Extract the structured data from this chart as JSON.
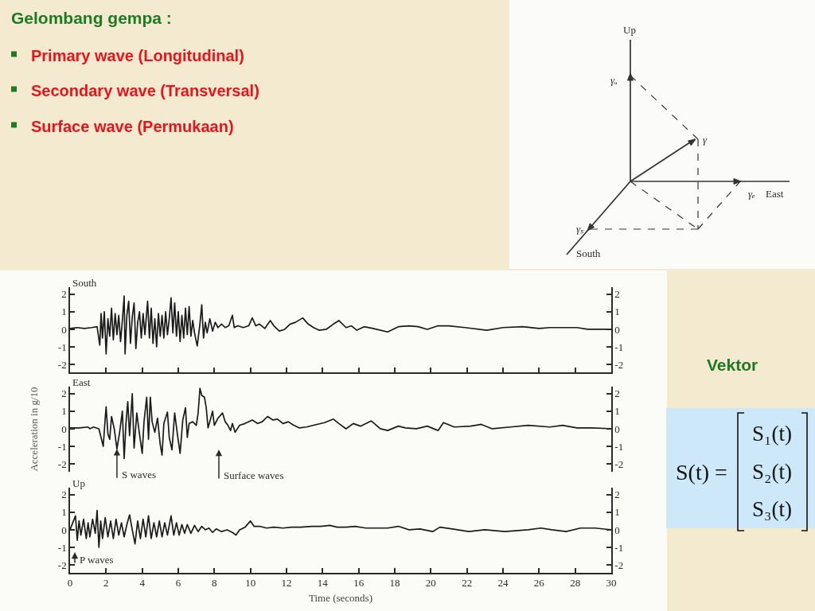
{
  "chart_data": [
    {
      "type": "line",
      "title": "South",
      "annotations": [
        "Gelombang gempa :",
        "Primary wave (Longitudinal)",
        "Secondary wave (Transversal)",
        "Surface wave (Permukaan)",
        "Up",
        "γᵤ",
        "γ",
        "γₑ",
        "East",
        "γₛ",
        "South",
        "Vektor",
        "S(t) =",
        "S₁(t)",
        "S₂(t)",
        "S₃(t)"
      ],
      "color": "#1a1a1a",
      "x": [
        0,
        0.4,
        0.8,
        1.2,
        1.5,
        1.65,
        1.72,
        1.8,
        1.9,
        2.0,
        2.1,
        2.2,
        2.3,
        2.4,
        2.5,
        2.6,
        2.7,
        2.8,
        2.9,
        3.0,
        3.05,
        3.15,
        3.25,
        3.35,
        3.45,
        3.55,
        3.65,
        3.75,
        3.85,
        3.95,
        4.05,
        4.15,
        4.3,
        4.4,
        4.5,
        4.6,
        4.7,
        4.8,
        4.9,
        5.0,
        5.1,
        5.2,
        5.3,
        5.4,
        5.5,
        5.6,
        5.7,
        5.8,
        5.9,
        6.0,
        6.1,
        6.2,
        6.3,
        6.4,
        6.5,
        6.6,
        6.7,
        6.8,
        6.9,
        7.05,
        7.2,
        7.3,
        7.4,
        7.5,
        7.6,
        7.75,
        7.9,
        8.05,
        8.2,
        8.4,
        8.6,
        8.8,
        9.0,
        9.1,
        9.3,
        9.6,
        9.9,
        10.1,
        10.3,
        10.5,
        10.8,
        11.1,
        11.3,
        11.6,
        11.9,
        12.2,
        12.5,
        12.9,
        13.2,
        13.5,
        13.8,
        14.2,
        14.6,
        14.9,
        15.3,
        15.6,
        15.9,
        16.3,
        16.8,
        17.6,
        18.2,
        18.8,
        19.3,
        19.8,
        20.4,
        21.0,
        21.9,
        23.1,
        24.0,
        25.1,
        26.0,
        26.6,
        27.5,
        28.1,
        28.7,
        29.6,
        30.0
      ],
      "values": [
        0.05,
        0.1,
        0.05,
        0.1,
        0.15,
        -0.9,
        0.9,
        -0.5,
        1.0,
        -1.4,
        0.6,
        -0.4,
        1.2,
        -0.6,
        0.9,
        -0.3,
        0.8,
        -0.7,
        0.5,
        1.9,
        -1.4,
        0.8,
        1.6,
        -0.8,
        0.7,
        1.5,
        -1.1,
        0.4,
        1.0,
        -0.5,
        0.9,
        -0.3,
        1.6,
        -0.5,
        1.2,
        -0.8,
        0.6,
        -1.0,
        0.9,
        -0.4,
        0.8,
        -0.5,
        1.0,
        -0.3,
        0.6,
        1.8,
        -0.2,
        1.5,
        -0.4,
        1.0,
        -0.7,
        0.8,
        -0.5,
        1.2,
        -0.3,
        1.3,
        -0.4,
        0.5,
        -0.2,
        -0.95,
        0.3,
        1.4,
        -0.5,
        0.4,
        -0.2,
        0.6,
        -0.1,
        0.4,
        0.1,
        0.3,
        0.1,
        0.2,
        0.8,
        0.1,
        0.2,
        0.1,
        0.2,
        0.65,
        0.2,
        0.3,
        0.05,
        0.5,
        0.2,
        -0.1,
        0.0,
        0.3,
        0.4,
        0.65,
        0.3,
        0.1,
        -0.05,
        0.0,
        0.3,
        0.5,
        0.1,
        0.2,
        -0.05,
        0.15,
        0.05,
        -0.15,
        0.15,
        0.2,
        0.15,
        0.0,
        0.2,
        0.2,
        0.1,
        -0.05,
        0.1,
        0.15,
        0.05,
        0.1,
        0.1,
        0.1,
        0.0,
        0.0,
        0.0
      ],
      "xlim": [
        0,
        30
      ],
      "xticks": [
        0,
        2,
        4,
        6,
        8,
        10,
        12,
        14,
        16,
        18,
        20,
        22,
        24,
        26,
        28,
        30
      ],
      "ylim": [
        -2.45,
        2.4
      ],
      "yticks": [
        -2,
        -1,
        0,
        1,
        2
      ],
      "y2lim": [
        -2.45,
        2.4
      ],
      "y2ticks": [
        -2,
        -1,
        0,
        1,
        2
      ],
      "tick_labels": "y"
    },
    {
      "type": "line",
      "title": "East",
      "ylabel": "Acceleration in g/10",
      "annotations": [
        {
          "text": "S waves",
          "x": 2.6,
          "y": -1.15
        },
        "Surface waves"
      ],
      "color": "#1a1a1a",
      "x": [
        0,
        0.5,
        1.0,
        1.1,
        1.3,
        1.6,
        1.84,
        1.95,
        2.0,
        2.1,
        2.2,
        2.3,
        2.45,
        2.6,
        2.75,
        2.9,
        3.0,
        3.1,
        3.2,
        3.3,
        3.45,
        3.55,
        3.7,
        3.85,
        4.0,
        4.1,
        4.25,
        4.35,
        4.45,
        4.55,
        4.7,
        4.85,
        5.0,
        5.1,
        5.2,
        5.4,
        5.5,
        5.65,
        5.8,
        5.95,
        6.1,
        6.25,
        6.4,
        6.5,
        6.6,
        6.8,
        7.0,
        7.1,
        7.2,
        7.3,
        7.45,
        7.55,
        7.65,
        7.8,
        7.9,
        8.0,
        8.2,
        8.45,
        8.6,
        8.75,
        8.9,
        9.0,
        9.15,
        9.4,
        9.7,
        10.1,
        10.4,
        10.65,
        10.95,
        11.25,
        11.5,
        11.8,
        12.1,
        12.4,
        12.7,
        13.1,
        13.5,
        14.1,
        14.6,
        14.9,
        15.3,
        15.7,
        16.1,
        16.7,
        17.2,
        17.6,
        18.2,
        18.6,
        19.2,
        19.8,
        20.4,
        20.7,
        21.3,
        22.2,
        22.8,
        23.4,
        24.4,
        25.4,
        26.6,
        27.3,
        28.1,
        29.0,
        30.0
      ],
      "values": [
        0.05,
        0.05,
        0.1,
        0.0,
        0.1,
        0.0,
        -1.0,
        0.6,
        1.25,
        -0.3,
        -0.6,
        0.7,
        0.0,
        -1.15,
        -0.2,
        1.0,
        -1.7,
        0.3,
        1.55,
        -0.4,
        2.0,
        -1.1,
        0.9,
        -0.3,
        -1.4,
        0.4,
        1.8,
        -0.6,
        1.8,
        0.4,
        -0.2,
        0.6,
        -0.9,
        -1.5,
        0.3,
        0.95,
        -0.5,
        -1.2,
        0.9,
        -0.3,
        -1.4,
        0.5,
        1.2,
        -0.5,
        0.3,
        0.4,
        0.2,
        0.9,
        2.3,
        1.9,
        1.8,
        1.2,
        0.05,
        0.6,
        1.0,
        0.2,
        0.6,
        0.9,
        0.4,
        0.2,
        -0.1,
        0.3,
        -0.2,
        0.2,
        0.3,
        0.5,
        0.3,
        0.4,
        0.7,
        0.5,
        0.55,
        0.3,
        0.4,
        0.2,
        0.05,
        0.1,
        0.2,
        0.35,
        0.55,
        0.3,
        0.0,
        0.3,
        0.15,
        0.45,
        0.0,
        -0.1,
        0.15,
        0.05,
        0.0,
        0.15,
        -0.1,
        0.35,
        0.1,
        0.15,
        0.25,
        0.0,
        0.1,
        0.2,
        0.1,
        0.2,
        0.05,
        0.05,
        0.0
      ],
      "xlim": [
        0,
        30
      ],
      "ylim": [
        -2.45,
        2.4
      ],
      "yticks": [
        -2,
        -1,
        0,
        1,
        2
      ],
      "y2lim": [
        -2.45,
        2.4
      ],
      "y2ticks": [
        -2,
        -1,
        0,
        1,
        2
      ],
      "tick_labels": "y"
    },
    {
      "type": "line",
      "title": "Up",
      "xlabel": "Time (seconds)",
      "annotations": [
        "P waves"
      ],
      "color": "#1a1a1a",
      "x": [
        0.0,
        0.15,
        0.3,
        0.4,
        0.5,
        0.6,
        0.75,
        0.9,
        1.0,
        1.1,
        1.25,
        1.4,
        1.5,
        1.6,
        1.7,
        1.8,
        1.95,
        2.1,
        2.25,
        2.4,
        2.55,
        2.7,
        2.85,
        3.0,
        3.15,
        3.3,
        3.45,
        3.6,
        3.75,
        3.9,
        4.05,
        4.2,
        4.35,
        4.5,
        4.65,
        4.8,
        4.95,
        5.1,
        5.25,
        5.4,
        5.6,
        5.75,
        5.9,
        6.05,
        6.2,
        6.35,
        6.5,
        6.7,
        6.9,
        7.1,
        7.3,
        7.5,
        7.7,
        7.9,
        8.1,
        8.4,
        8.7,
        9.0,
        9.2,
        9.4,
        9.7,
        10.0,
        10.2,
        10.5,
        10.9,
        11.3,
        11.8,
        12.3,
        12.8,
        13.4,
        13.9,
        14.4,
        14.8,
        15.3,
        15.8,
        16.4,
        17.0,
        17.6,
        18.2,
        18.8,
        19.4,
        20.1,
        20.5,
        21.2,
        22.1,
        23.0,
        24.1,
        25.4,
        26.1,
        26.7,
        27.5,
        28.3,
        29.1,
        30.0
      ],
      "values": [
        0.0,
        0.4,
        0.8,
        -0.6,
        0.5,
        -0.3,
        0.6,
        -0.5,
        0.4,
        -0.4,
        0.6,
        -0.2,
        1.1,
        -1.0,
        0.5,
        -0.5,
        0.7,
        -0.4,
        0.5,
        -0.5,
        0.6,
        -0.3,
        0.4,
        -0.4,
        0.3,
        0.85,
        0.0,
        -0.8,
        0.5,
        -0.5,
        0.6,
        -0.4,
        0.8,
        -0.5,
        0.4,
        -0.4,
        0.5,
        -0.4,
        0.4,
        -0.3,
        0.8,
        -0.3,
        0.4,
        -0.3,
        0.3,
        -0.2,
        0.3,
        -0.2,
        0.25,
        -0.1,
        0.2,
        0.0,
        0.1,
        -0.15,
        0.05,
        -0.1,
        0.0,
        -0.15,
        -0.3,
        0.0,
        0.15,
        0.5,
        0.2,
        0.2,
        0.1,
        0.15,
        0.1,
        0.15,
        0.15,
        0.2,
        0.2,
        0.25,
        0.15,
        0.15,
        0.2,
        0.1,
        0.1,
        0.1,
        0.2,
        0.0,
        0.05,
        -0.1,
        0.15,
        0.05,
        -0.1,
        0.0,
        -0.1,
        0.0,
        0.1,
        0.0,
        -0.1,
        0.1,
        0.1,
        0.0
      ],
      "xlim": [
        0,
        30
      ],
      "xticks": [
        0,
        2,
        4,
        6,
        8,
        10,
        12,
        14,
        16,
        18,
        20,
        22,
        24,
        26,
        28,
        30
      ],
      "ylim": [
        -2.45,
        2.4
      ],
      "yticks": [
        -2,
        -1,
        0,
        1,
        2
      ],
      "y2lim": [
        -2.45,
        2.4
      ],
      "y2ticks": [
        -2,
        -1,
        0,
        1,
        2
      ]
    }
  ]
}
